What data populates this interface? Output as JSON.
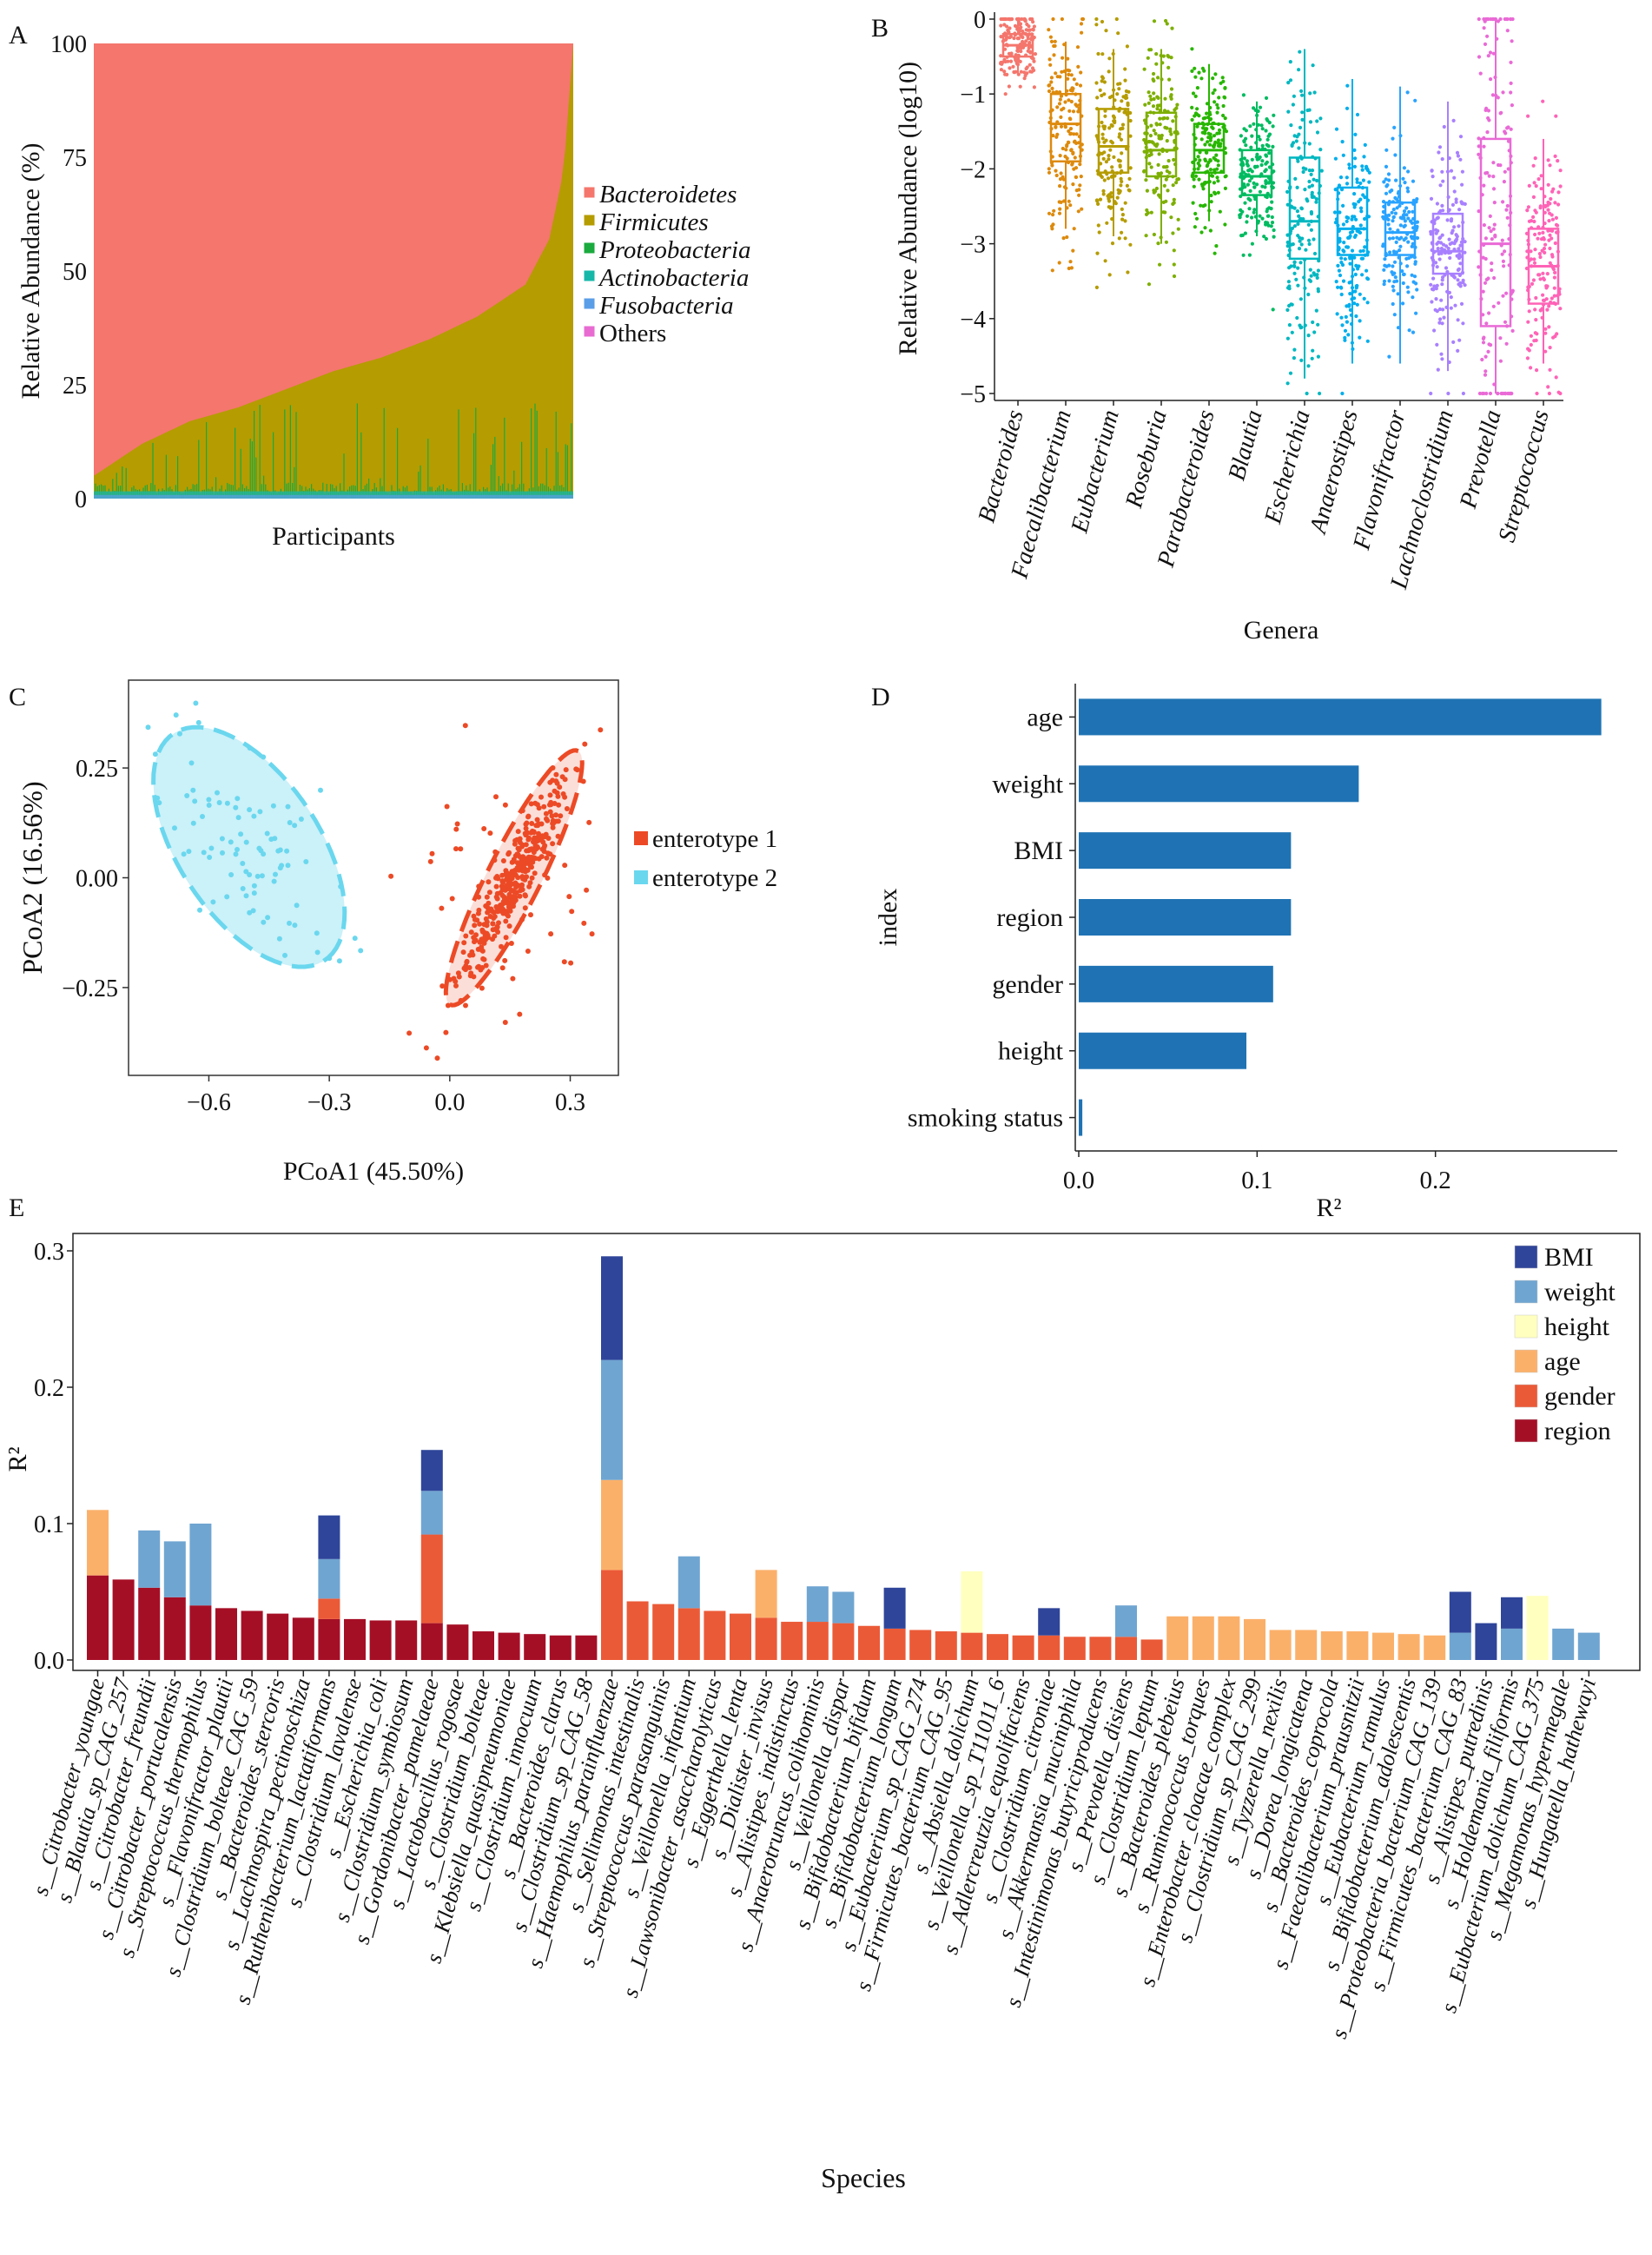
{
  "chart_data": [
    {
      "panel": "A",
      "type": "area",
      "xlabel": "Participants",
      "ylabel": "Relative Abundance (%)",
      "ylim": [
        0,
        100
      ],
      "yticks": [
        "0",
        "25",
        "50",
        "75",
        "100"
      ],
      "legend": [
        "Bacteroidetes",
        "Firmicutes",
        "Proteobacteria",
        "Actinobacteria",
        "Fusobacteria",
        "Others"
      ],
      "colors": {
        "Bacteroidetes": "#f4766d",
        "Firmicutes": "#b59c00",
        "Proteobacteria": "#1aaa3e",
        "Actinobacteria": "#16b7a9",
        "Fusobacteria": "#5b9ee8",
        "Others": "#e86bd2"
      },
      "firmicutes_plus_boundary": {
        "percentile": [
          0,
          0.1,
          0.2,
          0.3,
          0.4,
          0.5,
          0.6,
          0.7,
          0.8,
          0.9,
          0.95,
          0.98,
          1.0
        ],
        "top_percent": [
          5,
          12,
          17,
          20,
          24,
          28,
          31,
          35,
          40,
          47,
          57,
          72,
          100
        ]
      }
    },
    {
      "panel": "B",
      "type": "box",
      "xlabel": "Genera",
      "ylabel": "Relative Abundance (log10)",
      "ylim": [
        -5,
        0
      ],
      "yticks": [
        "0",
        "−1",
        "−2",
        "−3",
        "−4",
        "−5"
      ],
      "categories": [
        "Bacteroides",
        "Faecalibacterium",
        "Eubacterium",
        "Roseburia",
        "Parabacteroides",
        "Blautia",
        "Escherichia",
        "Anaerostipes",
        "Flavonifractor",
        "Lachnoclostridium",
        "Prevotella",
        "Streptococcus"
      ],
      "colors": [
        "#f4766d",
        "#dd8a0d",
        "#b59c00",
        "#7daf00",
        "#27b600",
        "#00bb60",
        "#00b7c0",
        "#00aeec",
        "#29a3ff",
        "#a880ff",
        "#e96ad6",
        "#ff63b6"
      ],
      "q1": [
        -0.5,
        -1.9,
        -2.05,
        -2.1,
        -2.05,
        -2.35,
        -3.2,
        -3.15,
        -3.15,
        -3.4,
        -4.1,
        -3.8
      ],
      "median": [
        -0.35,
        -1.4,
        -1.7,
        -1.75,
        -1.75,
        -2.1,
        -2.7,
        -2.8,
        -2.85,
        -3.1,
        -3.0,
        -3.3
      ],
      "q3": [
        -0.2,
        -1.0,
        -1.2,
        -1.25,
        -1.4,
        -1.75,
        -1.85,
        -2.25,
        -2.45,
        -2.6,
        -1.6,
        -2.8
      ],
      "whisker_low": [
        -0.75,
        -2.8,
        -2.9,
        -3.0,
        -2.7,
        -2.9,
        -4.8,
        -4.6,
        -4.6,
        -4.7,
        -5.0,
        -4.6
      ],
      "whisker_high": [
        0,
        -0.3,
        -0.4,
        -0.4,
        -0.6,
        -1.1,
        -0.4,
        -0.8,
        -0.9,
        -1.1,
        0,
        -1.6
      ]
    },
    {
      "panel": "C",
      "type": "scatter",
      "xlabel": "PCoA1 (45.50%)",
      "ylabel": "PCoA2 (16.56%)",
      "xlim": [
        -0.8,
        0.42
      ],
      "ylim": [
        -0.45,
        0.45
      ],
      "xticks": [
        "−0.6",
        "−0.3",
        "0.0",
        "0.3"
      ],
      "yticks": [
        "0.25",
        "0.00",
        "−0.25"
      ],
      "legend": [
        "enterotype 1",
        "enterotype 2"
      ],
      "colors": {
        "enterotype 1": "#ec4a26",
        "enterotype 2": "#6ad7ee"
      },
      "ellipses": [
        {
          "group": "enterotype 2",
          "center": [
            -0.5,
            0.07
          ],
          "semi_major": 0.32,
          "semi_minor": 0.17,
          "angle_deg": -52
        },
        {
          "group": "enterotype 1",
          "center": [
            0.16,
            0.0
          ],
          "semi_major": 0.33,
          "semi_minor": 0.065,
          "angle_deg": 61
        }
      ]
    },
    {
      "panel": "D",
      "type": "bar",
      "orientation": "horizontal",
      "xlabel": "R²",
      "ylabel": "index",
      "xlim": [
        0,
        0.3
      ],
      "xticks": [
        "0.0",
        "0.1",
        "0.2"
      ],
      "categories": [
        "age",
        "weight",
        "BMI",
        "region",
        "gender",
        "height",
        "smoking status"
      ],
      "values": [
        0.293,
        0.157,
        0.119,
        0.119,
        0.109,
        0.094,
        0.002
      ],
      "color": "#1f73b4"
    },
    {
      "panel": "E",
      "type": "bar",
      "stacked": true,
      "xlabel": "Species",
      "ylabel": "R²",
      "ylim": [
        0,
        0.3
      ],
      "yticks": [
        "0.0",
        "0.1",
        "0.2",
        "0.3"
      ],
      "legend": [
        "BMI",
        "weight",
        "height",
        "age",
        "gender",
        "region"
      ],
      "colors": {
        "BMI": "#2f459a",
        "weight": "#6fa5d1",
        "height": "#ffffbf",
        "age": "#fbb06a",
        "gender": "#eb5a37",
        "region": "#a50f26"
      },
      "series_order": [
        "region",
        "gender",
        "age",
        "height",
        "weight",
        "BMI"
      ],
      "categories": [
        "s__Citrobacter_youngae",
        "s__Blautia_sp_CAG_257",
        "s__Citrobacter_freundii",
        "s__Citrobacter_portucalensis",
        "s__Streptococcus_thermophilus",
        "s__Flavonifractor_plautii",
        "s__Clostridium_bolteae_CAG_59",
        "s__Bacteroides_stercoris",
        "s__Lachnospira_pectinoschiza",
        "s__Ruthenibacterium_lactatiformans",
        "s__Clostridium_lavalense",
        "s__Escherichia_coli",
        "s__Clostridium_symbiosum",
        "s__Gordonibacter_pamelaeae",
        "s__Lactobacillus_rogosae",
        "s__Clostridium_bolteae",
        "s__Klebsiella_quasipneumoniae",
        "s__Clostridium_innocuum",
        "s__Bacteroides_clarus",
        "s__Clostridium_sp_CAG_58",
        "s__Haemophilus_parainfluenzae",
        "s__Sellimonas_intestinalis",
        "s__Streptococcus_parasanguinis",
        "s__Veillonella_infantium",
        "s__Lawsonibacter_asaccharolyticus",
        "s__Eggerthella_lenta",
        "s__Dialister_invisus",
        "s__Alistipes_indistinctus",
        "s__Anaerotruncus_colihominis",
        "s__Veillonella_dispar",
        "s__Bifidobacterium_bifidum",
        "s__Bifidobacterium_longum",
        "s__Eubacterium_sp_CAG_274",
        "s__Firmicutes_bacterium_CAG_95",
        "s__Absiella_dolichum",
        "s__Veillonella_sp_T11011_6",
        "s__Adlercreutzia_equolifaciens",
        "s__Clostridium_citroniae",
        "s__Akkermansia_muciniphila",
        "s__Intestinimonas_butyriciproducens",
        "s__Prevotella_disiens",
        "s__Clostridium_leptum",
        "s__Bacteroides_plebeius",
        "s__Ruminococcus_torques",
        "s__Enterobacter_cloacae_complex",
        "s__Clostridium_sp_CAG_299",
        "s__Tyzzerella_nexilis",
        "s__Dorea_longicatena",
        "s__Bacteroides_coprocola",
        "s__Faecalibacterium_prausnitzii",
        "s__Eubacterium_ramulus",
        "s__Bifidobacterium_adolescentis",
        "s__Proteobacteria_bacterium_CAG_139",
        "s__Firmicutes_bacterium_CAG_83",
        "s__Alistipes_putredinis",
        "s__Holdemania_filiformis",
        "s__Eubacterium_dolichum_CAG_375",
        "s__Megamonas_hypermegale",
        "s__Hungatella_hathewayi"
      ],
      "series": [
        {
          "name": "region",
          "values": [
            0.062,
            0.059,
            0.053,
            0.046,
            0.04,
            0.038,
            0.036,
            0.034,
            0.031,
            0.03,
            0.03,
            0.029,
            0.029,
            0.027,
            0.026,
            0.021,
            0.02,
            0.019,
            0.018,
            0.018,
            0,
            0,
            0,
            0,
            0,
            0,
            0,
            0,
            0,
            0,
            0,
            0,
            0,
            0,
            0,
            0,
            0,
            0,
            0,
            0,
            0,
            0,
            0,
            0,
            0,
            0,
            0,
            0,
            0,
            0,
            0,
            0,
            0,
            0,
            0,
            0,
            0,
            0,
            0
          ]
        },
        {
          "name": "gender",
          "values": [
            0,
            0,
            0,
            0,
            0,
            0,
            0,
            0,
            0,
            0.015,
            0,
            0,
            0,
            0.065,
            0,
            0,
            0,
            0,
            0,
            0,
            0.066,
            0.043,
            0.041,
            0.038,
            0.036,
            0.034,
            0.031,
            0.028,
            0.028,
            0.027,
            0.025,
            0.023,
            0.022,
            0.021,
            0.02,
            0.019,
            0.018,
            0.018,
            0.017,
            0.017,
            0.017,
            0.015,
            0,
            0,
            0,
            0,
            0,
            0,
            0,
            0,
            0,
            0,
            0,
            0,
            0,
            0,
            0,
            0,
            0
          ]
        },
        {
          "name": "age",
          "values": [
            0.048,
            0,
            0,
            0,
            0,
            0,
            0,
            0,
            0,
            0,
            0,
            0,
            0,
            0,
            0,
            0,
            0,
            0,
            0,
            0,
            0.066,
            0,
            0,
            0,
            0,
            0,
            0.035,
            0,
            0,
            0,
            0,
            0,
            0,
            0,
            0,
            0,
            0,
            0,
            0,
            0,
            0,
            0,
            0.032,
            0.032,
            0.032,
            0.03,
            0.022,
            0.022,
            0.021,
            0.021,
            0.02,
            0.019,
            0.018,
            0,
            0,
            0,
            0,
            0,
            0
          ]
        },
        {
          "name": "height",
          "values": [
            0,
            0,
            0,
            0,
            0,
            0,
            0,
            0,
            0,
            0,
            0,
            0,
            0,
            0,
            0,
            0,
            0,
            0,
            0,
            0,
            0,
            0,
            0,
            0,
            0,
            0,
            0,
            0,
            0,
            0,
            0,
            0,
            0,
            0,
            0.045,
            0,
            0,
            0,
            0,
            0,
            0,
            0,
            0,
            0,
            0,
            0,
            0,
            0,
            0,
            0,
            0,
            0,
            0,
            0,
            0,
            0,
            0.047,
            0,
            0
          ]
        },
        {
          "name": "weight",
          "values": [
            0,
            0,
            0.042,
            0.041,
            0.06,
            0,
            0,
            0,
            0,
            0.029,
            0,
            0,
            0,
            0.032,
            0,
            0,
            0,
            0,
            0,
            0,
            0.088,
            0,
            0,
            0.038,
            0,
            0,
            0,
            0,
            0.026,
            0.023,
            0,
            0,
            0,
            0,
            0,
            0,
            0,
            0,
            0,
            0,
            0.023,
            0,
            0,
            0,
            0,
            0,
            0,
            0,
            0,
            0,
            0,
            0,
            0,
            0.02,
            0,
            0.023,
            0,
            0.023,
            0.02
          ]
        },
        {
          "name": "BMI",
          "values": [
            0,
            0,
            0,
            0,
            0,
            0,
            0,
            0,
            0,
            0.032,
            0,
            0,
            0,
            0.03,
            0,
            0,
            0,
            0,
            0,
            0,
            0.076,
            0,
            0,
            0,
            0,
            0,
            0,
            0,
            0,
            0,
            0,
            0.03,
            0,
            0,
            0,
            0,
            0,
            0.02,
            0,
            0,
            0,
            0,
            0,
            0,
            0,
            0,
            0,
            0,
            0,
            0,
            0,
            0,
            0,
            0.03,
            0.027,
            0.023,
            0,
            0,
            0
          ]
        }
      ]
    }
  ],
  "panel_labels": {
    "a": "A",
    "b": "B",
    "c": "C",
    "d": "D",
    "e": "E"
  }
}
